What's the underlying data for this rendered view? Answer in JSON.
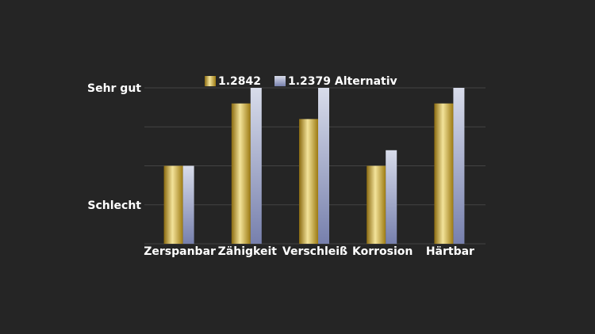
{
  "chart_data": {
    "type": "bar",
    "categories": [
      "Zerspanbar",
      "Zähigkeit",
      "Verschleiß",
      "Korrosion",
      "Härtbar"
    ],
    "series": [
      {
        "name": "1.2842",
        "color": "#c9a227",
        "values": [
          2,
          3.6,
          3.2,
          2,
          3.6
        ]
      },
      {
        "name": "1.2379 Alternativ",
        "color": "#b4bcd8",
        "values": [
          2,
          4,
          4,
          2.4,
          4
        ]
      }
    ],
    "ylim": [
      0,
      4
    ],
    "yticks": [
      {
        "value": 1,
        "label": "Schlecht"
      },
      {
        "value": 2,
        "label": null
      },
      {
        "value": 3,
        "label": null
      },
      {
        "value": 4,
        "label": "Sehr gut"
      }
    ],
    "grid": true
  }
}
